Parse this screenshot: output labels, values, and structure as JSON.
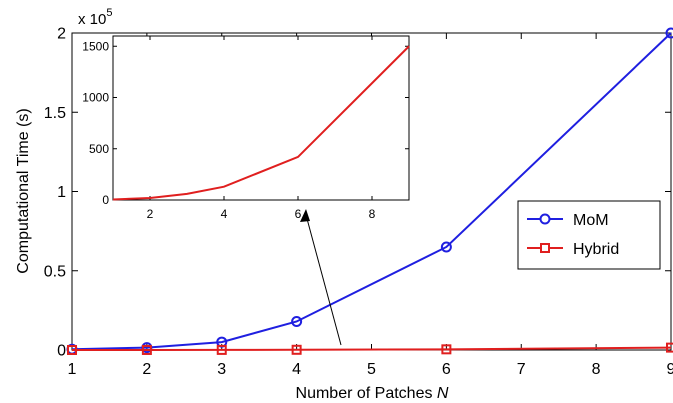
{
  "chart_data": [
    {
      "type": "line",
      "xlabel": "Number of Patches ",
      "xlabel_italic": "N",
      "ylabel": "Computational Time (s)",
      "exponent_label": "x 10",
      "exponent_power": "5",
      "xlim": [
        1,
        9
      ],
      "ylim": [
        0,
        200000
      ],
      "x_ticks": [
        1,
        2,
        3,
        4,
        5,
        6,
        7,
        8,
        9
      ],
      "y_ticks": [
        0,
        50000,
        100000,
        150000,
        200000
      ],
      "y_tick_labels": [
        "0",
        "0.5",
        "1",
        "1.5",
        "2"
      ],
      "legend_position": "right",
      "series": [
        {
          "name": "MoM",
          "color": "#1f1fe0",
          "marker": "circle",
          "x": [
            1,
            2,
            3,
            4,
            6,
            9
          ],
          "y": [
            500,
            1500,
            5000,
            18000,
            65000,
            200000
          ]
        },
        {
          "name": "Hybrid",
          "color": "#e01f1f",
          "marker": "square",
          "x": [
            1,
            2,
            3,
            4,
            6,
            9
          ],
          "y": [
            5,
            20,
            60,
            130,
            420,
            1500
          ]
        }
      ]
    },
    {
      "type": "line",
      "xlim": [
        1,
        9
      ],
      "ylim": [
        0,
        1600
      ],
      "x_ticks": [
        2,
        4,
        6,
        8
      ],
      "y_ticks": [
        0,
        500,
        1000,
        1500
      ],
      "series": [
        {
          "color": "#e01f1f",
          "x": [
            1,
            2,
            3,
            4,
            6,
            9
          ],
          "y": [
            5,
            20,
            60,
            130,
            420,
            1500
          ]
        }
      ]
    }
  ]
}
